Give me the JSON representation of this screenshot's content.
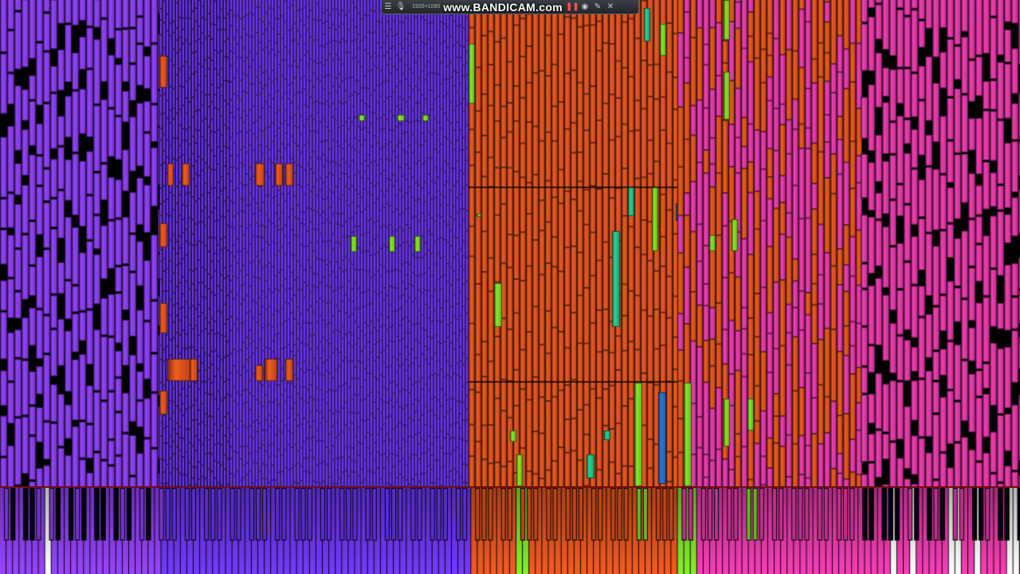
{
  "recorder": {
    "menu_icon": "menu-icon",
    "mic_icon": "microphone-icon",
    "resolution": "1920×1080",
    "watermark": "www.BANDICAM.com",
    "record_icon": "record-icon",
    "pause_icon": "pause-icon",
    "camera_icon": "camera-icon",
    "pencil_icon": "pencil-icon",
    "close_icon": "close-icon"
  },
  "colors": {
    "violet": "#8a3ff0",
    "indigo": "#6a36f0",
    "orange": "#e0541e",
    "magenta": "#e23aa8",
    "green": "#7cd92a",
    "teal": "#24c48a",
    "blue": "#2a6fc8",
    "divider_red": "#a31212"
  },
  "note_zones": [
    {
      "name": "violet-block",
      "color": "#8a3ff0"
    },
    {
      "name": "indigo-block",
      "color": "#6a36f0"
    },
    {
      "name": "orange-block",
      "color": "#e0541e"
    },
    {
      "name": "pink-orange-mix",
      "color": "#e23aa8"
    },
    {
      "name": "magenta-block",
      "color": "#e23aa8"
    }
  ]
}
